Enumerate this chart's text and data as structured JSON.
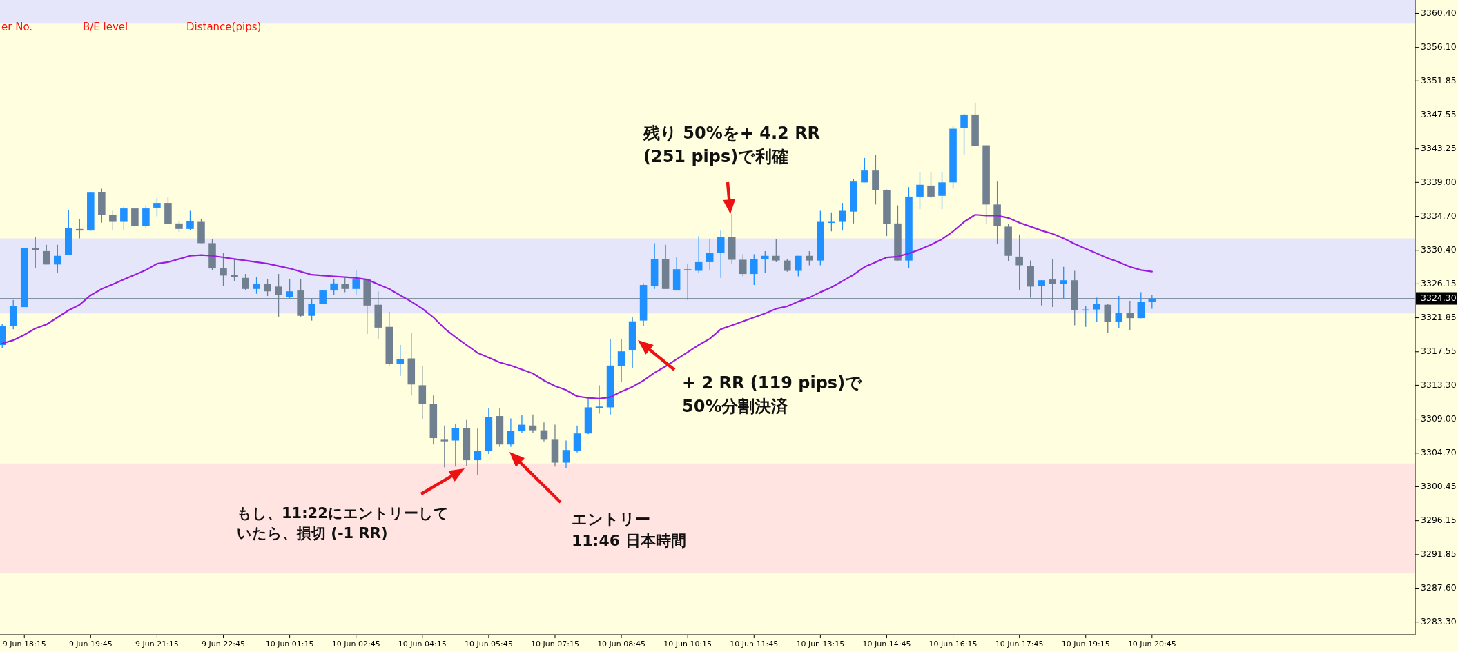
{
  "chart_data": {
    "type": "candlestick",
    "categories": [
      null,
      null,
      "9 Jun 18:15",
      null,
      null,
      null,
      null,
      null,
      "9 Jun 19:45",
      null,
      null,
      null,
      null,
      null,
      "9 Jun 21:15",
      null,
      null,
      null,
      null,
      null,
      "9 Jun 22:45",
      null,
      null,
      null,
      null,
      null,
      "10 Jun 01:15",
      null,
      null,
      null,
      null,
      null,
      "10 Jun 02:45",
      null,
      null,
      null,
      null,
      null,
      "10 Jun 04:15",
      null,
      null,
      null,
      null,
      null,
      "10 Jun 05:45",
      null,
      null,
      null,
      null,
      null,
      "10 Jun 07:15",
      null,
      null,
      null,
      null,
      null,
      "10 Jun 08:45",
      null,
      null,
      null,
      null,
      null,
      "10 Jun 10:15",
      null,
      null,
      null,
      null,
      null,
      "10 Jun 11:45",
      null,
      null,
      null,
      null,
      null,
      "10 Jun 13:15",
      null,
      null,
      null,
      null,
      null,
      "10 Jun 14:45",
      null,
      null,
      null,
      null,
      null,
      "10 Jun 16:15",
      null,
      null,
      null,
      null,
      null,
      "10 Jun 17:45",
      null,
      null,
      null,
      null,
      null,
      "10 Jun 19:15",
      null,
      null,
      null,
      null,
      null,
      "10 Jun 20:45"
    ],
    "ohlc": [
      [
        3318.4,
        3321.1,
        3318.0,
        3320.8
      ],
      [
        3320.8,
        3324.1,
        3320.4,
        3323.3
      ],
      [
        3323.2,
        3330.7,
        3323.2,
        3330.7
      ],
      [
        3330.7,
        3332.1,
        3328.2,
        3330.4
      ],
      [
        3330.3,
        3331.1,
        3328.6,
        3328.6
      ],
      [
        3328.6,
        3331.1,
        3327.5,
        3329.7
      ],
      [
        3329.8,
        3335.5,
        3329.8,
        3333.2
      ],
      [
        3333.1,
        3334.4,
        3331.9,
        3332.9
      ],
      [
        3332.9,
        3337.8,
        3332.9,
        3337.7
      ],
      [
        3337.8,
        3338.2,
        3333.9,
        3334.9
      ],
      [
        3334.9,
        3335.4,
        3333.0,
        3334.0
      ],
      [
        3334.0,
        3335.9,
        3332.9,
        3335.7
      ],
      [
        3335.7,
        3335.7,
        3333.4,
        3333.5
      ],
      [
        3333.5,
        3336.1,
        3333.2,
        3335.7
      ],
      [
        3335.8,
        3337.0,
        3334.7,
        3336.4
      ],
      [
        3336.4,
        3337.1,
        3333.7,
        3333.7
      ],
      [
        3333.8,
        3334.1,
        3332.7,
        3333.1
      ],
      [
        3333.1,
        3335.4,
        3333.0,
        3334.1
      ],
      [
        3334.0,
        3334.4,
        3331.3,
        3331.3
      ],
      [
        3331.3,
        3331.8,
        3327.9,
        3328.1
      ],
      [
        3328.1,
        3330.1,
        3325.9,
        3327.2
      ],
      [
        3327.3,
        3329.3,
        3326.5,
        3327.0
      ],
      [
        3326.9,
        3327.4,
        3325.4,
        3325.5
      ],
      [
        3325.5,
        3327.0,
        3324.9,
        3326.1
      ],
      [
        3326.1,
        3326.8,
        3324.6,
        3325.2
      ],
      [
        3325.8,
        3327.4,
        3322.0,
        3324.7
      ],
      [
        3324.5,
        3326.8,
        3324.3,
        3325.2
      ],
      [
        3325.3,
        3326.8,
        3322.0,
        3322.1
      ],
      [
        3322.1,
        3324.3,
        3321.5,
        3323.6
      ],
      [
        3323.6,
        3325.4,
        3323.6,
        3325.3
      ],
      [
        3325.3,
        3326.7,
        3324.7,
        3326.2
      ],
      [
        3326.1,
        3326.9,
        3325.1,
        3325.5
      ],
      [
        3325.5,
        3327.9,
        3324.8,
        3326.7
      ],
      [
        3326.7,
        3326.8,
        3319.8,
        3323.4
      ],
      [
        3323.5,
        3325.2,
        3319.2,
        3320.6
      ],
      [
        3320.7,
        3322.6,
        3315.8,
        3316.0
      ],
      [
        3316.0,
        3318.4,
        3314.5,
        3316.6
      ],
      [
        3316.7,
        3319.9,
        3312.0,
        3313.4
      ],
      [
        3313.3,
        3315.7,
        3309.0,
        3310.9
      ],
      [
        3310.9,
        3312.0,
        3305.8,
        3306.6
      ],
      [
        3306.4,
        3308.2,
        3302.9,
        3306.2
      ],
      [
        3306.3,
        3308.4,
        3303.0,
        3307.9
      ],
      [
        3307.9,
        3308.9,
        3303.1,
        3303.8
      ],
      [
        3303.8,
        3307.8,
        3301.9,
        3305.0
      ],
      [
        3305.0,
        3310.4,
        3304.6,
        3309.3
      ],
      [
        3309.4,
        3310.4,
        3305.5,
        3305.8
      ],
      [
        3305.8,
        3309.1,
        3305.5,
        3307.5
      ],
      [
        3307.5,
        3309.5,
        3307.3,
        3308.3
      ],
      [
        3308.2,
        3309.6,
        3307.3,
        3307.6
      ],
      [
        3307.6,
        3308.6,
        3306.2,
        3306.4
      ],
      [
        3306.4,
        3308.3,
        3303.0,
        3303.5
      ],
      [
        3303.5,
        3306.3,
        3302.8,
        3305.1
      ],
      [
        3305.0,
        3308.2,
        3304.8,
        3307.2
      ],
      [
        3307.2,
        3311.7,
        3307.1,
        3310.5
      ],
      [
        3310.4,
        3313.3,
        3309.7,
        3310.6
      ],
      [
        3310.5,
        3319.2,
        3309.6,
        3315.8
      ],
      [
        3315.7,
        3319.2,
        3313.7,
        3317.6
      ],
      [
        3317.7,
        3321.9,
        3315.5,
        3321.4
      ],
      [
        3321.5,
        3326.2,
        3320.8,
        3326.0
      ],
      [
        3325.9,
        3331.3,
        3325.5,
        3329.3
      ],
      [
        3329.3,
        3331.1,
        3325.5,
        3325.5
      ],
      [
        3325.3,
        3329.5,
        3325.3,
        3328.0
      ],
      [
        3328.0,
        3328.7,
        3324.1,
        3327.9
      ],
      [
        3327.8,
        3332.2,
        3327.5,
        3328.9
      ],
      [
        3328.9,
        3331.8,
        3327.9,
        3330.1
      ],
      [
        3330.1,
        3332.9,
        3326.9,
        3332.1
      ],
      [
        3332.1,
        3335.0,
        3328.7,
        3329.2
      ],
      [
        3329.2,
        3329.9,
        3327.1,
        3327.4
      ],
      [
        3327.4,
        3329.9,
        3326.0,
        3329.3
      ],
      [
        3329.3,
        3330.3,
        3327.5,
        3329.7
      ],
      [
        3329.7,
        3331.8,
        3328.9,
        3329.1
      ],
      [
        3329.1,
        3329.3,
        3327.7,
        3327.8
      ],
      [
        3327.8,
        3329.7,
        3327.1,
        3329.7
      ],
      [
        3329.7,
        3330.3,
        3328.5,
        3329.1
      ],
      [
        3329.1,
        3335.4,
        3328.5,
        3334.0
      ],
      [
        3333.9,
        3335.2,
        3332.8,
        3334.0
      ],
      [
        3334.0,
        3336.4,
        3332.9,
        3335.4
      ],
      [
        3335.3,
        3339.4,
        3333.8,
        3339.1
      ],
      [
        3339.0,
        3342.1,
        3339.0,
        3340.5
      ],
      [
        3340.5,
        3342.5,
        3336.2,
        3338.0
      ],
      [
        3338.0,
        3338.1,
        3332.2,
        3333.7
      ],
      [
        3333.8,
        3336.1,
        3329.1,
        3329.1
      ],
      [
        3329.1,
        3338.4,
        3328.1,
        3337.2
      ],
      [
        3337.2,
        3340.3,
        3335.6,
        3338.7
      ],
      [
        3338.6,
        3340.3,
        3337.0,
        3337.2
      ],
      [
        3337.3,
        3340.3,
        3335.6,
        3339.0
      ],
      [
        3339.0,
        3346.1,
        3338.2,
        3345.8
      ],
      [
        3345.9,
        3347.7,
        3342.5,
        3347.6
      ],
      [
        3347.6,
        3349.1,
        3343.6,
        3343.6
      ],
      [
        3343.7,
        3343.7,
        3333.7,
        3336.2
      ],
      [
        3336.2,
        3339.1,
        3331.2,
        3333.5
      ],
      [
        3333.4,
        3333.7,
        3329.0,
        3329.7
      ],
      [
        3329.6,
        3332.4,
        3325.4,
        3328.5
      ],
      [
        3328.4,
        3329.1,
        3324.4,
        3325.8
      ],
      [
        3325.9,
        3326.6,
        3323.4,
        3326.6
      ],
      [
        3326.7,
        3329.3,
        3323.2,
        3326.1
      ],
      [
        3326.1,
        3328.3,
        3324.3,
        3326.6
      ],
      [
        3326.6,
        3327.8,
        3320.9,
        3322.8
      ],
      [
        3322.8,
        3323.3,
        3320.7,
        3322.9
      ],
      [
        3322.9,
        3324.4,
        3321.3,
        3323.6
      ],
      [
        3323.5,
        3323.6,
        3319.9,
        3321.3
      ],
      [
        3321.3,
        3324.6,
        3320.5,
        3322.5
      ],
      [
        3322.5,
        3324.0,
        3320.3,
        3321.8
      ],
      [
        3321.8,
        3325.1,
        3321.8,
        3323.9
      ],
      [
        3323.9,
        3324.7,
        3323.0,
        3324.3
      ]
    ],
    "colors": [
      "#1e90ff",
      "#1e90ff",
      "#1e90ff",
      "#708090",
      "#708090",
      "#1e90ff",
      "#1e90ff",
      "#708090",
      "#1e90ff",
      "#708090",
      "#708090",
      "#1e90ff",
      "#708090",
      "#1e90ff",
      "#1e90ff",
      "#708090",
      "#708090",
      "#1e90ff",
      "#708090",
      "#708090",
      "#708090",
      "#708090",
      "#708090",
      "#1e90ff",
      "#708090",
      "#708090",
      "#1e90ff",
      "#708090",
      "#1e90ff",
      "#1e90ff",
      "#1e90ff",
      "#708090",
      "#1e90ff",
      "#708090",
      "#708090",
      "#708090",
      "#1e90ff",
      "#708090",
      "#708090",
      "#708090",
      "#708090",
      "#1e90ff",
      "#708090",
      "#1e90ff",
      "#1e90ff",
      "#708090",
      "#1e90ff",
      "#1e90ff",
      "#708090",
      "#708090",
      "#708090",
      "#1e90ff",
      "#1e90ff",
      "#1e90ff",
      "#1e90ff",
      "#1e90ff",
      "#1e90ff",
      "#1e90ff",
      "#1e90ff",
      "#1e90ff",
      "#708090",
      "#1e90ff",
      "#708090",
      "#1e90ff",
      "#1e90ff",
      "#1e90ff",
      "#708090",
      "#708090",
      "#1e90ff",
      "#1e90ff",
      "#708090",
      "#708090",
      "#1e90ff",
      "#708090",
      "#1e90ff",
      "#1e90ff",
      "#1e90ff",
      "#1e90ff",
      "#1e90ff",
      "#708090",
      "#708090",
      "#708090",
      "#1e90ff",
      "#1e90ff",
      "#708090",
      "#1e90ff",
      "#1e90ff",
      "#1e90ff",
      "#708090",
      "#708090",
      "#708090",
      "#708090",
      "#708090",
      "#708090",
      "#1e90ff",
      "#708090",
      "#1e90ff",
      "#708090",
      "#1e90ff",
      "#1e90ff",
      "#708090",
      "#1e90ff",
      "#708090",
      "#1e90ff",
      "#1e90ff"
    ],
    "series": [
      {
        "type": "line",
        "color": "#9a1ce0",
        "values": [
          3318.6,
          3319.0,
          3319.7,
          3320.5,
          3321.0,
          3321.9,
          3322.8,
          3323.5,
          3324.7,
          3325.5,
          3326.1,
          3326.7,
          3327.3,
          3327.9,
          3328.7,
          3328.9,
          3329.3,
          3329.7,
          3329.8,
          3329.7,
          3329.5,
          3329.3,
          3329.1,
          3328.9,
          3328.7,
          3328.4,
          3328.1,
          3327.7,
          3327.3,
          3327.2,
          3327.1,
          3327.0,
          3326.9,
          3326.7,
          3326.1,
          3325.5,
          3324.7,
          3323.9,
          3323.0,
          3321.9,
          3320.5,
          3319.4,
          3318.4,
          3317.4,
          3316.8,
          3316.2,
          3315.8,
          3315.3,
          3314.8,
          3313.9,
          3313.2,
          3312.7,
          3311.9,
          3311.7,
          3311.6,
          3311.8,
          3312.5,
          3313.1,
          3313.9,
          3314.9,
          3315.7,
          3316.6,
          3317.5,
          3318.4,
          3319.2,
          3320.4,
          3320.9,
          3321.4,
          3321.9,
          3322.4,
          3323.0,
          3323.3,
          3323.9,
          3324.4,
          3325.1,
          3325.7,
          3326.5,
          3327.3,
          3328.3,
          3328.9,
          3329.5,
          3329.6,
          3330.0,
          3330.5,
          3331.1,
          3331.8,
          3332.8,
          3334.0,
          3334.9,
          3334.8,
          3334.8,
          3334.5,
          3333.9,
          3333.4,
          3332.9,
          3332.5,
          3331.9,
          3331.2,
          3330.6,
          3330.0,
          3329.4,
          3328.9,
          3328.3,
          3327.9,
          3327.7
        ]
      }
    ],
    "ylim": [
      3281.7,
      3362.1
    ],
    "yticks": [
      {
        "value": 3360.4,
        "label": "3360.40"
      },
      {
        "value": 3356.1,
        "label": "3356.10"
      },
      {
        "value": 3351.85,
        "label": "3351.85"
      },
      {
        "value": 3347.55,
        "label": "3347.55"
      },
      {
        "value": 3343.25,
        "label": "3343.25"
      },
      {
        "value": 3339,
        "label": "3339.00"
      },
      {
        "value": 3334.7,
        "label": "3334.70"
      },
      {
        "value": 3330.4,
        "label": "3330.40"
      },
      {
        "value": 3326.15,
        "label": "3326.15"
      },
      {
        "value": 3321.85,
        "label": "3321.85"
      },
      {
        "value": 3317.55,
        "label": "3317.55"
      },
      {
        "value": 3313.3,
        "label": "3313.30"
      },
      {
        "value": 3309,
        "label": "3309.00"
      },
      {
        "value": 3304.7,
        "label": "3304.70"
      },
      {
        "value": 3300.45,
        "label": "3300.45"
      },
      {
        "value": 3296.15,
        "label": "3296.15"
      },
      {
        "value": 3291.85,
        "label": "3291.85"
      },
      {
        "value": 3287.6,
        "label": "3287.60"
      },
      {
        "value": 3283.3,
        "label": "3283.30"
      }
    ],
    "ref_lines": [
      {
        "axis": "y",
        "value": 3324.3,
        "label": "3324.30",
        "color": "#8090a0"
      }
    ],
    "bands": [
      {
        "axis": "y",
        "from": 3359.1,
        "to": 3362.1,
        "color": "#e6e6fa"
      },
      {
        "axis": "y",
        "from": 3322.4,
        "to": 3331.9,
        "color": "#e6e6fa"
      },
      {
        "axis": "y",
        "from": 3289.5,
        "to": 3303.4,
        "color": "#ffe4e1"
      }
    ],
    "annotations": [
      "er No.",
      "B/E level",
      "Distance(pips)",
      "残り 50%を+ 4.2 RR\n(251 pips)で利確",
      "+ 2 RR (119 pips)で\n50%分割決済",
      "もし、11:22にエントリーしていたら、損切 (-1 RR)",
      "エントリー\n11:46 日本時間"
    ]
  }
}
